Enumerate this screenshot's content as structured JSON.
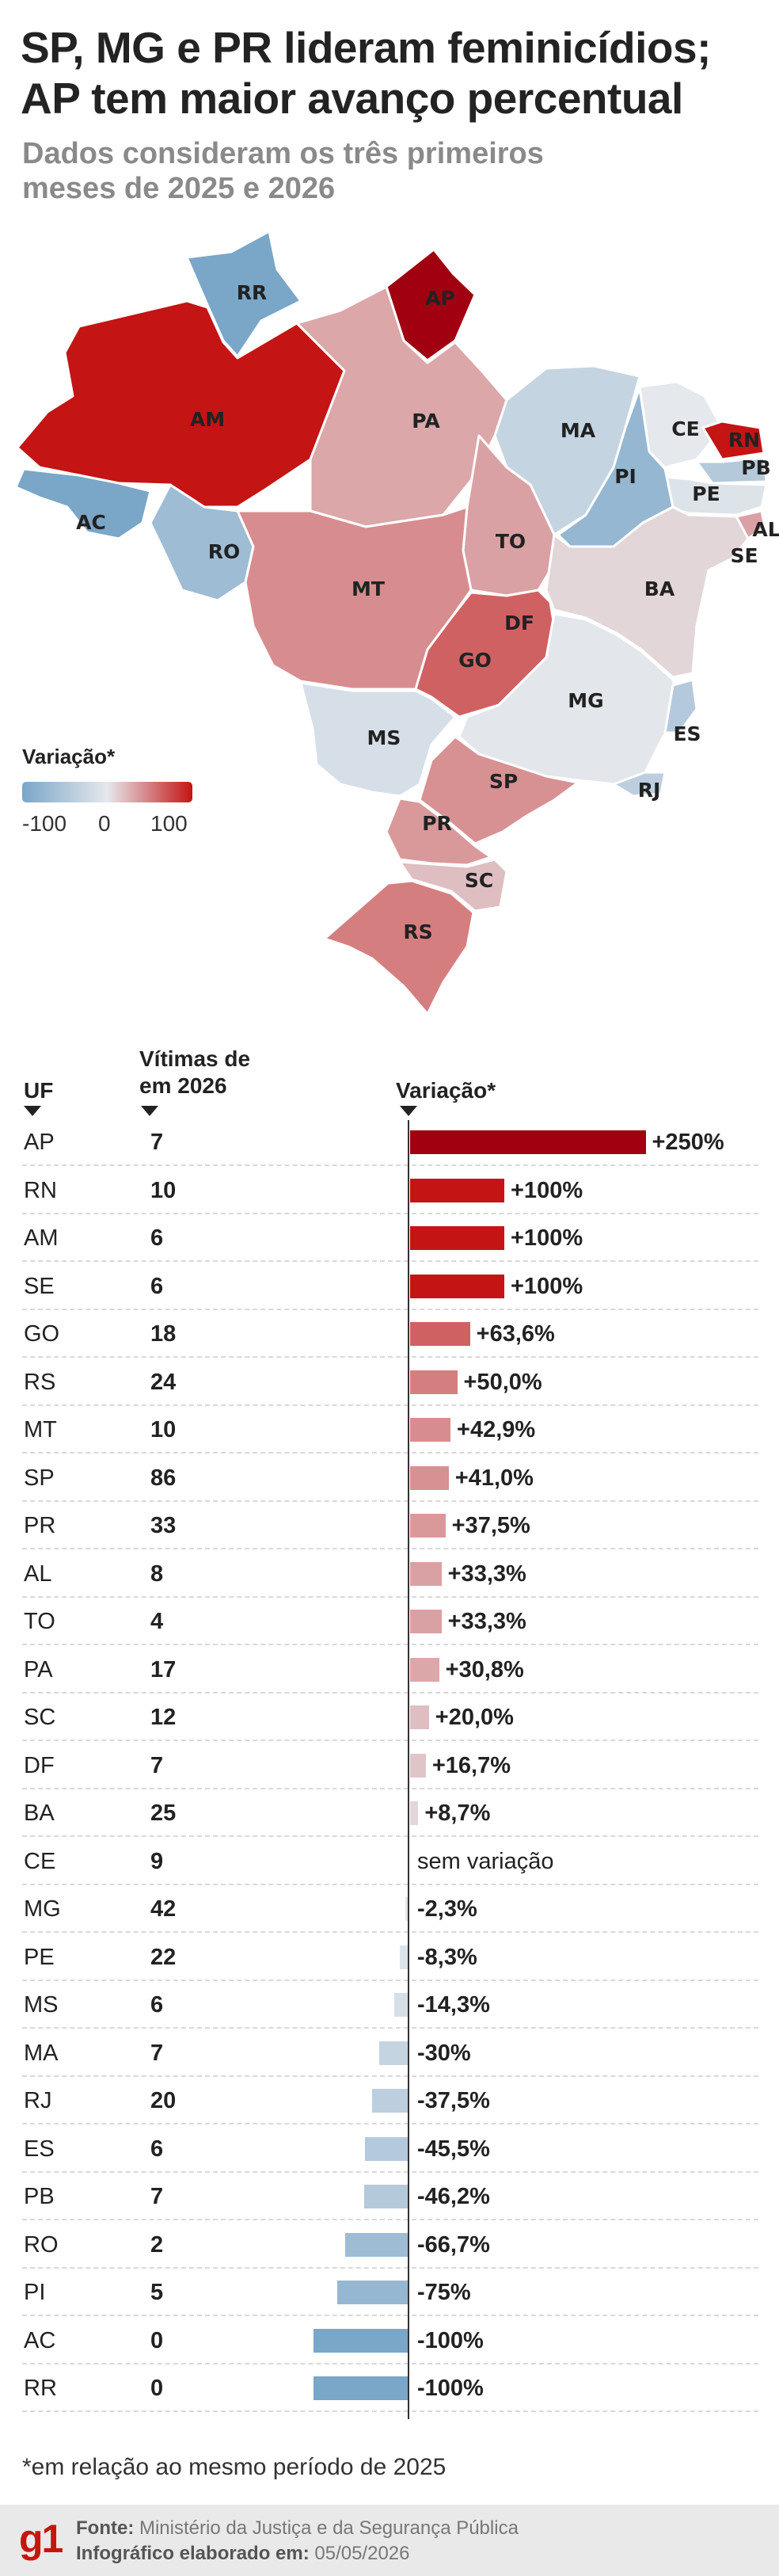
{
  "title": {
    "line1": "SP, MG e PR lideram feminicídios;",
    "line2": "AP tem maior avanço percentual"
  },
  "subtitle": {
    "line1": "Dados consideram os três primeiros",
    "line2": "meses de 2025 e 2026"
  },
  "legend": {
    "title": "Variação*",
    "min": "-100",
    "mid": "0",
    "max": "100",
    "colors": {
      "negative": "#7aa6c8",
      "zero": "#e5e8ec",
      "positive": "#c41414"
    }
  },
  "table_headers": {
    "uf": "UF",
    "victims_l1": "Vítimas de",
    "victims_l2": "em 2026",
    "variation": "Variação*"
  },
  "colors": {
    "axis": "#333333",
    "row_separator": "#d9d9d9",
    "bar_scale": [
      "#7aa6c8",
      "#e5e8ec",
      "#c41414",
      "#a00010"
    ]
  },
  "chart_data": {
    "type": "bar",
    "orientation": "horizontal",
    "xlabel": "Variação*",
    "xlim": [
      -100,
      250
    ],
    "rows": [
      {
        "uf": "AP",
        "victims": "7",
        "variation": 250,
        "label": "+250%"
      },
      {
        "uf": "RN",
        "victims": "10",
        "variation": 100,
        "label": "+100%"
      },
      {
        "uf": "AM",
        "victims": "6",
        "variation": 100,
        "label": "+100%"
      },
      {
        "uf": "SE",
        "victims": "6",
        "variation": 100,
        "label": "+100%"
      },
      {
        "uf": "GO",
        "victims": "18",
        "variation": 63.6,
        "label": "+63,6%"
      },
      {
        "uf": "RS",
        "victims": "24",
        "variation": 50.0,
        "label": "+50,0%"
      },
      {
        "uf": "MT",
        "victims": "10",
        "variation": 42.9,
        "label": "+42,9%"
      },
      {
        "uf": "SP",
        "victims": "86",
        "variation": 41.0,
        "label": "+41,0%"
      },
      {
        "uf": "PR",
        "victims": "33",
        "variation": 37.5,
        "label": "+37,5%"
      },
      {
        "uf": "AL",
        "victims": "8",
        "variation": 33.3,
        "label": "+33,3%"
      },
      {
        "uf": "TO",
        "victims": "4",
        "variation": 33.3,
        "label": "+33,3%"
      },
      {
        "uf": "PA",
        "victims": "17",
        "variation": 30.8,
        "label": "+30,8%"
      },
      {
        "uf": "SC",
        "victims": "12",
        "variation": 20.0,
        "label": "+20,0%"
      },
      {
        "uf": "DF",
        "victims": "7",
        "variation": 16.7,
        "label": "+16,7%"
      },
      {
        "uf": "BA",
        "victims": "25",
        "variation": 8.7,
        "label": "+8,7%"
      },
      {
        "uf": "CE",
        "victims": "9",
        "variation": 0,
        "label": "sem variação"
      },
      {
        "uf": "MG",
        "victims": "42",
        "variation": -2.3,
        "label": "-2,3%"
      },
      {
        "uf": "PE",
        "victims": "22",
        "variation": -8.3,
        "label": "-8,3%"
      },
      {
        "uf": "MS",
        "victims": "6",
        "variation": -14.3,
        "label": "-14,3%"
      },
      {
        "uf": "MA",
        "victims": "7",
        "variation": -30,
        "label": "-30%"
      },
      {
        "uf": "RJ",
        "victims": "20",
        "variation": -37.5,
        "label": "-37,5%"
      },
      {
        "uf": "ES",
        "victims": "6",
        "variation": -45.5,
        "label": "-45,5%"
      },
      {
        "uf": "PB",
        "victims": "7",
        "variation": -46.2,
        "label": "-46,2%"
      },
      {
        "uf": "RO",
        "victims": "2",
        "variation": -66.7,
        "label": "-66,7%"
      },
      {
        "uf": "PI",
        "victims": "5",
        "variation": -75,
        "label": "-75%"
      },
      {
        "uf": "AC",
        "victims": "0",
        "variation": -100,
        "label": "-100%"
      },
      {
        "uf": "RR",
        "victims": "0",
        "variation": -100,
        "label": "-100%"
      }
    ]
  },
  "map_labels": [
    "RR",
    "AP",
    "AM",
    "PA",
    "MA",
    "CE",
    "RN",
    "PB",
    "PE",
    "AL",
    "SE",
    "PI",
    "AC",
    "RO",
    "TO",
    "BA",
    "MT",
    "DF",
    "GO",
    "MG",
    "ES",
    "RJ",
    "MS",
    "SP",
    "PR",
    "SC",
    "RS"
  ],
  "footnote": "*em relação ao mesmo período de 2025",
  "footer": {
    "logo": "g1",
    "source_label": "Fonte:",
    "source": "Ministério da Justiça e da Segurança Pública",
    "date_label": "Infográfico elaborado em:",
    "date": "05/05/2026"
  }
}
